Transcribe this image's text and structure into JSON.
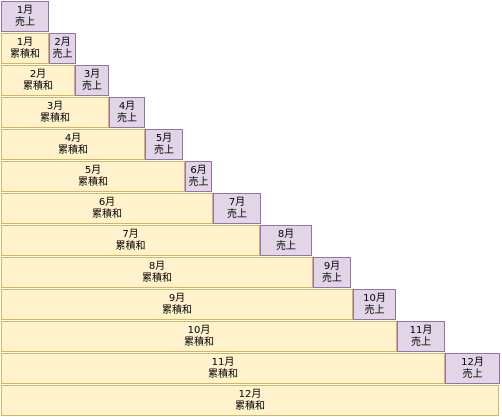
{
  "colors": {
    "cumulative_fill": "#fff2cc",
    "cumulative_border": "#d6b656",
    "sales_fill": "#e1d5e7",
    "sales_border": "#9673a6"
  },
  "rows": [
    {
      "cumulative": null,
      "sales": {
        "month": "1月",
        "label": "売上"
      }
    },
    {
      "cumulative": {
        "month": "1月",
        "label": "累積和"
      },
      "sales": {
        "month": "2月",
        "label": "売上"
      }
    },
    {
      "cumulative": {
        "month": "2月",
        "label": "累積和"
      },
      "sales": {
        "month": "3月",
        "label": "売上"
      }
    },
    {
      "cumulative": {
        "month": "3月",
        "label": "累積和"
      },
      "sales": {
        "month": "4月",
        "label": "売上"
      }
    },
    {
      "cumulative": {
        "month": "4月",
        "label": "累積和"
      },
      "sales": {
        "month": "5月",
        "label": "売上"
      }
    },
    {
      "cumulative": {
        "month": "5月",
        "label": "累積和"
      },
      "sales": {
        "month": "6月",
        "label": "売上"
      }
    },
    {
      "cumulative": {
        "month": "6月",
        "label": "累積和"
      },
      "sales": {
        "month": "7月",
        "label": "売上"
      }
    },
    {
      "cumulative": {
        "month": "7月",
        "label": "累積和"
      },
      "sales": {
        "month": "8月",
        "label": "売上"
      }
    },
    {
      "cumulative": {
        "month": "8月",
        "label": "累積和"
      },
      "sales": {
        "month": "9月",
        "label": "売上"
      }
    },
    {
      "cumulative": {
        "month": "9月",
        "label": "累積和"
      },
      "sales": {
        "month": "10月",
        "label": "売上"
      }
    },
    {
      "cumulative": {
        "month": "10月",
        "label": "累積和"
      },
      "sales": {
        "month": "11月",
        "label": "売上"
      }
    },
    {
      "cumulative": {
        "month": "11月",
        "label": "累積和"
      },
      "sales": {
        "month": "12月",
        "label": "売上"
      }
    },
    {
      "cumulative": {
        "month": "12月",
        "label": "累積和"
      },
      "sales": null
    }
  ]
}
